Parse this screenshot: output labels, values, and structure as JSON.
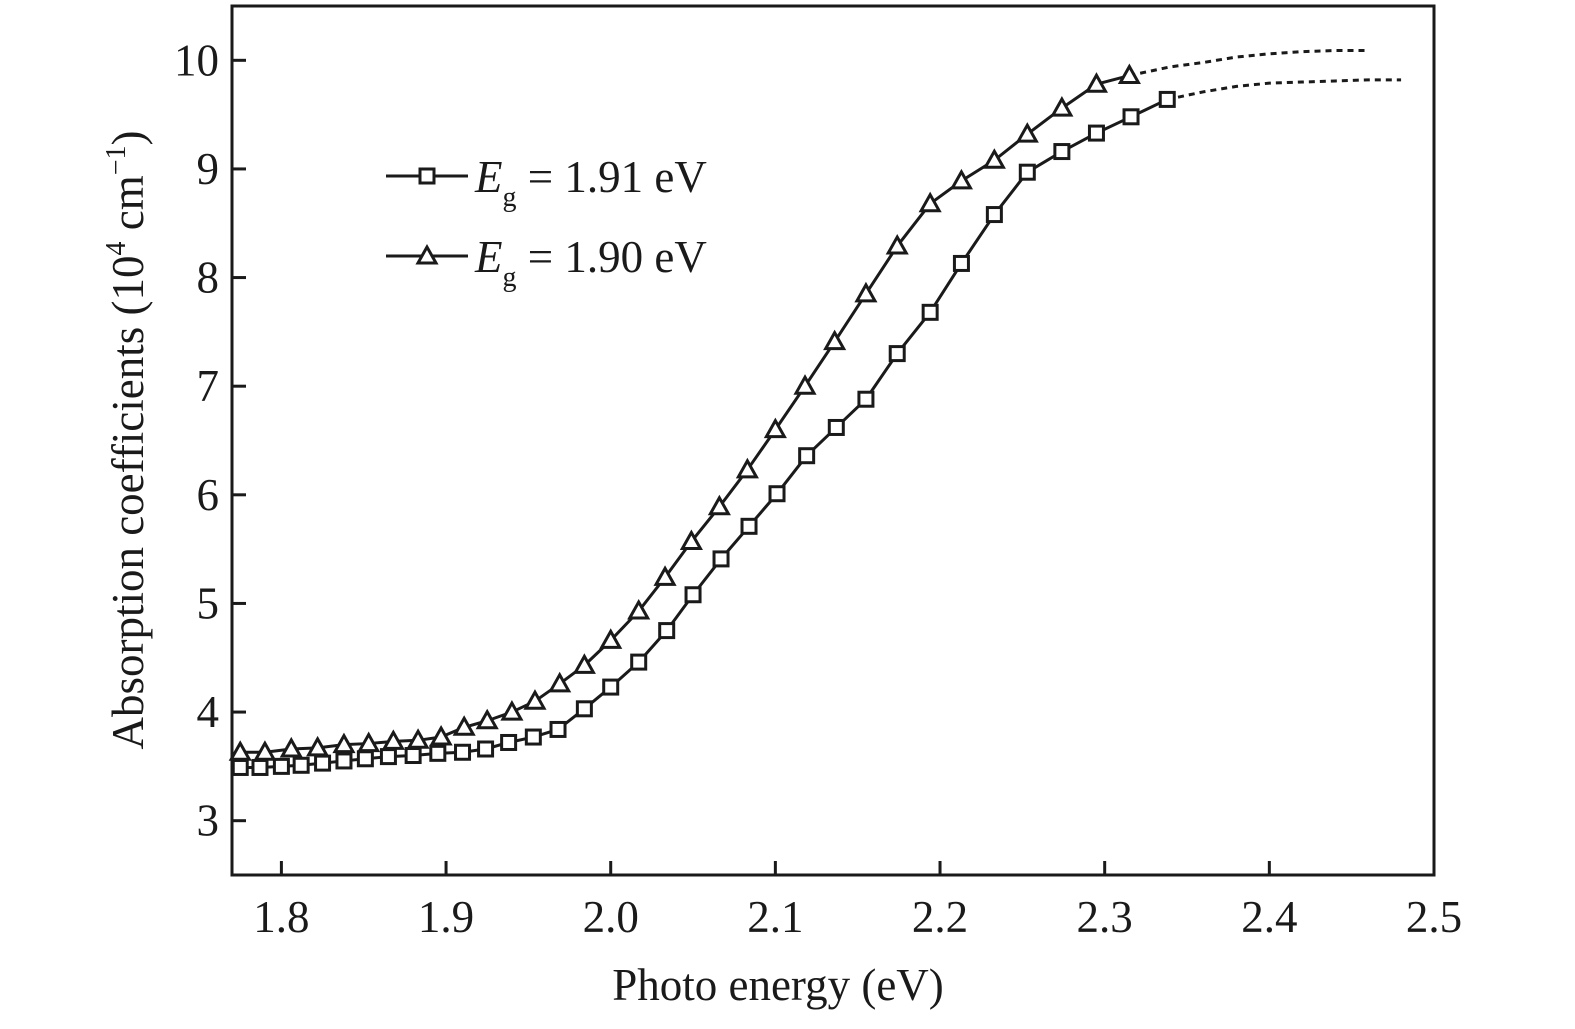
{
  "chart_data": {
    "type": "line",
    "xlabel": "Photo energy (eV)",
    "ylabel": "Absorption coefficients (10⁴ cm⁻¹)",
    "ylabel_parts": {
      "main": "Absorption coefficients (10",
      "sup1": "4",
      "mid": " cm",
      "sup2": "−1",
      "end": ")"
    },
    "xlim": [
      1.77,
      2.5
    ],
    "ylim": [
      2.5,
      10.5
    ],
    "xticks": [
      "1.8",
      "1.9",
      "2.0",
      "2.1",
      "2.2",
      "2.3",
      "2.4",
      "2.5"
    ],
    "yticks": [
      "3",
      "4",
      "5",
      "6",
      "7",
      "8",
      "9",
      "10"
    ],
    "grid": false,
    "legend_position": "top-left",
    "colors": {
      "line": "#1a1a1a",
      "marker_fill": "#ffffff"
    },
    "series": [
      {
        "legend_symbol": "E",
        "legend_sub": "g",
        "legend_value": " = 1.91 eV",
        "marker": "square",
        "x": [
          1.775,
          1.787,
          1.8,
          1.812,
          1.825,
          1.838,
          1.851,
          1.865,
          1.88,
          1.895,
          1.91,
          1.924,
          1.938,
          1.953,
          1.968,
          1.984,
          2.0,
          2.017,
          2.034,
          2.05,
          2.067,
          2.084,
          2.101,
          2.119,
          2.137,
          2.155,
          2.174,
          2.194,
          2.213,
          2.233,
          2.253,
          2.274,
          2.295,
          2.316,
          2.338
        ],
        "y": [
          3.49,
          3.49,
          3.5,
          3.51,
          3.53,
          3.55,
          3.57,
          3.59,
          3.6,
          3.62,
          3.63,
          3.66,
          3.72,
          3.77,
          3.84,
          4.03,
          4.23,
          4.46,
          4.75,
          5.08,
          5.41,
          5.71,
          6.01,
          6.36,
          6.62,
          6.88,
          7.3,
          7.68,
          8.13,
          8.58,
          8.97,
          9.16,
          9.33,
          9.48,
          9.64
        ],
        "extension_x": [
          2.338,
          2.36,
          2.38,
          2.4,
          2.42,
          2.44,
          2.46,
          2.48
        ],
        "extension_y": [
          9.64,
          9.71,
          9.76,
          9.79,
          9.8,
          9.81,
          9.82,
          9.82
        ]
      },
      {
        "legend_symbol": "E",
        "legend_sub": "g",
        "legend_value": " = 1.90 eV",
        "marker": "triangle",
        "x": [
          1.775,
          1.79,
          1.806,
          1.822,
          1.838,
          1.853,
          1.868,
          1.883,
          1.897,
          1.911,
          1.925,
          1.94,
          1.954,
          1.969,
          1.984,
          2.0,
          2.017,
          2.033,
          2.049,
          2.066,
          2.083,
          2.1,
          2.118,
          2.136,
          2.155,
          2.174,
          2.194,
          2.213,
          2.233,
          2.253,
          2.274,
          2.295,
          2.315
        ],
        "y": [
          3.63,
          3.63,
          3.66,
          3.67,
          3.7,
          3.71,
          3.73,
          3.74,
          3.77,
          3.86,
          3.92,
          4.0,
          4.1,
          4.26,
          4.43,
          4.66,
          4.93,
          5.24,
          5.57,
          5.89,
          6.23,
          6.6,
          7.0,
          7.41,
          7.85,
          8.29,
          8.68,
          8.89,
          9.08,
          9.32,
          9.56,
          9.78,
          9.86
        ],
        "extension_x": [
          2.315,
          2.34,
          2.36,
          2.38,
          2.4,
          2.42,
          2.44,
          2.46
        ],
        "extension_y": [
          9.86,
          9.94,
          9.98,
          10.03,
          10.06,
          10.08,
          10.09,
          10.09
        ]
      }
    ]
  }
}
